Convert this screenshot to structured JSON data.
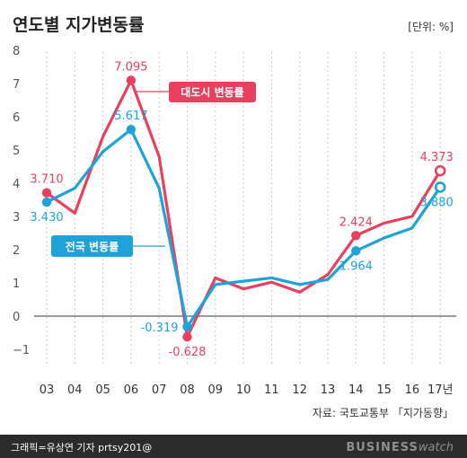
{
  "header": {
    "title": "연도별 지가변동률",
    "unit": "[단위: %]"
  },
  "chart_data": {
    "type": "line",
    "categories": [
      "03",
      "04",
      "05",
      "06",
      "07",
      "08",
      "09",
      "10",
      "11",
      "12",
      "13",
      "14",
      "15",
      "16",
      "17년"
    ],
    "ylim": [
      -1,
      8
    ],
    "yticks": [
      -1,
      0,
      1,
      2,
      3,
      4,
      5,
      6,
      7,
      8
    ],
    "grid": "vertical dashed",
    "series": [
      {
        "name": "대도시 변동률",
        "color": "#e8415f",
        "values": [
          3.71,
          3.1,
          5.4,
          7.095,
          4.8,
          -0.628,
          1.15,
          0.82,
          1.02,
          0.72,
          1.25,
          2.424,
          2.8,
          3.0,
          4.373
        ],
        "labels": [
          {
            "index": 0,
            "text": "3.710",
            "pos": "above"
          },
          {
            "index": 3,
            "text": "7.095",
            "pos": "above"
          },
          {
            "index": 5,
            "text": "-0.628",
            "pos": "below"
          },
          {
            "index": 11,
            "text": "2.424",
            "pos": "above"
          },
          {
            "index": 14,
            "text": "4.373",
            "pos": "above"
          }
        ]
      },
      {
        "name": "전국 변동률",
        "color": "#1ea3d9",
        "values": [
          3.43,
          3.85,
          4.95,
          5.617,
          3.85,
          -0.319,
          0.95,
          1.05,
          1.15,
          0.95,
          1.1,
          1.964,
          2.35,
          2.65,
          3.88
        ],
        "labels": [
          {
            "index": 0,
            "text": "3.430",
            "pos": "below"
          },
          {
            "index": 3,
            "text": "5.617",
            "pos": "above"
          },
          {
            "index": 5,
            "text": "-0.319",
            "pos": "left"
          },
          {
            "index": 11,
            "text": "1.964",
            "pos": "below"
          },
          {
            "index": 14,
            "text": "3.880",
            "pos": "below"
          }
        ]
      }
    ]
  },
  "legend": {
    "metro_label": "대도시 변동률",
    "national_label": "전국 변동률"
  },
  "footer": {
    "source": "자료: 국토교통부 「지가동향」",
    "credit": "그래픽=유상연 기자 prtsy201@",
    "brand_bold": "BUSINESS",
    "brand_light": "watch"
  }
}
